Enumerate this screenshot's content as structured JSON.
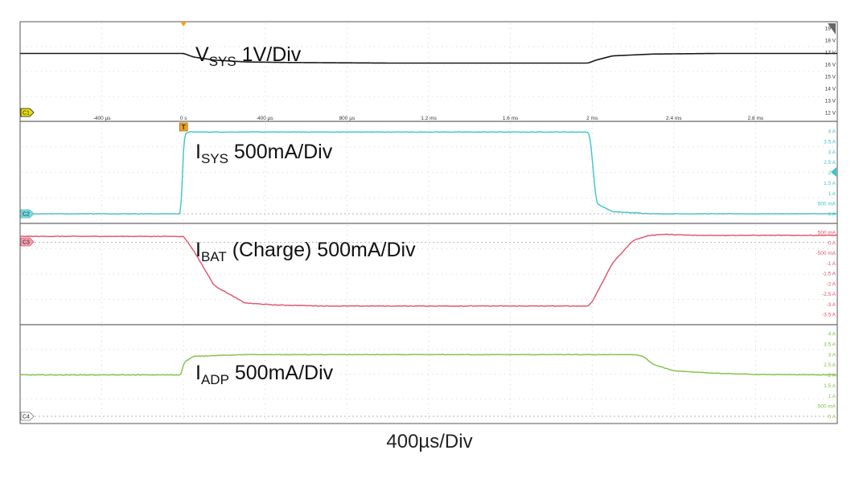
{
  "panels": [
    {
      "id": "vsys",
      "chip": "C1",
      "color": "#1a1a1a",
      "chip_color": "#e8e000",
      "label": {
        "main": "V",
        "sub": "SYS",
        "rest": " 1V/Div"
      },
      "y_ticks": [
        "19 V",
        "18 V",
        "17 V",
        "16 V",
        "15 V",
        "14 V",
        "13 V",
        "12 V"
      ],
      "y_range": [
        12,
        19
      ],
      "x_tick_labels": [
        "-400 µs",
        "0 s",
        "400 µs",
        "800 µs",
        "1.2 ms",
        "1.6 ms",
        "2 ms",
        "2.4 ms",
        "2.8 ms"
      ]
    },
    {
      "id": "isys",
      "chip": "C2",
      "color": "#3cc4cc",
      "chip_color": "#7fd8de",
      "label": {
        "main": "I",
        "sub": "SYS",
        "rest": " 500mA/Div"
      },
      "y_ticks": [
        "4 A",
        "3.5 A",
        "3 A",
        "2.5 A",
        "2 A",
        "1.5 A",
        "1 A",
        "500 mA",
        "0 A"
      ],
      "y_range": [
        0,
        4
      ]
    },
    {
      "id": "ibat",
      "chip": "C3",
      "color": "#e0506a",
      "chip_color": "#f2a0b0",
      "label": {
        "main": "I",
        "sub": "BAT",
        "rest": " (Charge) 500mA/Div"
      },
      "y_ticks": [
        "500 mA",
        "0 A",
        "-500 mA",
        "-1 A",
        "-1.5 A",
        "-2 A",
        "-2.5 A",
        "-3 A",
        "-3.5 A"
      ],
      "y_range": [
        -3.5,
        0.5
      ]
    },
    {
      "id": "iadp",
      "chip": "C4",
      "color": "#7cc242",
      "chip_color": "#ffffff",
      "label": {
        "main": "I",
        "sub": "ADP",
        "rest": " 500mA/Div"
      },
      "y_ticks": [
        "4 A",
        "3.5 A",
        "3 A",
        "2.5 A",
        "2 A",
        "1.5 A",
        "1 A",
        "500 mA",
        "0 A"
      ],
      "y_range": [
        0,
        4
      ]
    }
  ],
  "trigger_label": "T",
  "timebase_label": "400µs/Div",
  "chart_data": {
    "type": "line",
    "x_unit": "ms",
    "xlim": [
      -0.8,
      3.2
    ],
    "grid": true,
    "series": [
      {
        "name": "VSYS",
        "unit": "V",
        "x": [
          -0.8,
          0.0,
          0.05,
          0.15,
          0.3,
          0.5,
          1.0,
          1.5,
          1.98,
          2.02,
          2.1,
          2.3,
          2.6,
          3.2
        ],
        "y": [
          16.9,
          16.9,
          16.6,
          16.35,
          16.2,
          16.15,
          16.1,
          16.1,
          16.1,
          16.35,
          16.7,
          16.85,
          16.9,
          16.9
        ]
      },
      {
        "name": "ISYS",
        "unit": "A",
        "x": [
          -0.8,
          -0.01,
          0.0,
          0.02,
          1.98,
          1.99,
          2.02,
          2.1,
          2.3,
          3.2
        ],
        "y": [
          0.0,
          0.0,
          3.8,
          3.95,
          3.95,
          3.8,
          0.5,
          0.1,
          0.0,
          0.0
        ],
        "noise": 0.025
      },
      {
        "name": "IBAT",
        "unit": "A",
        "x": [
          -0.8,
          0.0,
          0.05,
          0.15,
          0.3,
          0.45,
          0.7,
          1.0,
          1.98,
          2.0,
          2.1,
          2.2,
          2.28,
          2.35,
          2.5,
          3.2
        ],
        "y": [
          0.3,
          0.3,
          -0.4,
          -2.1,
          -2.95,
          -3.05,
          -3.1,
          -3.1,
          -3.1,
          -2.9,
          -1.0,
          0.1,
          0.35,
          0.4,
          0.35,
          0.35
        ],
        "noise": 0.03
      },
      {
        "name": "IADP",
        "unit": "A",
        "x": [
          -0.8,
          -0.01,
          0.0,
          0.05,
          0.3,
          2.2,
          2.25,
          2.3,
          2.4,
          2.6,
          2.8,
          3.2
        ],
        "y": [
          2.0,
          2.0,
          2.6,
          2.9,
          2.98,
          2.98,
          2.9,
          2.5,
          2.2,
          2.08,
          2.02,
          2.0
        ],
        "noise": 0.025
      }
    ]
  }
}
